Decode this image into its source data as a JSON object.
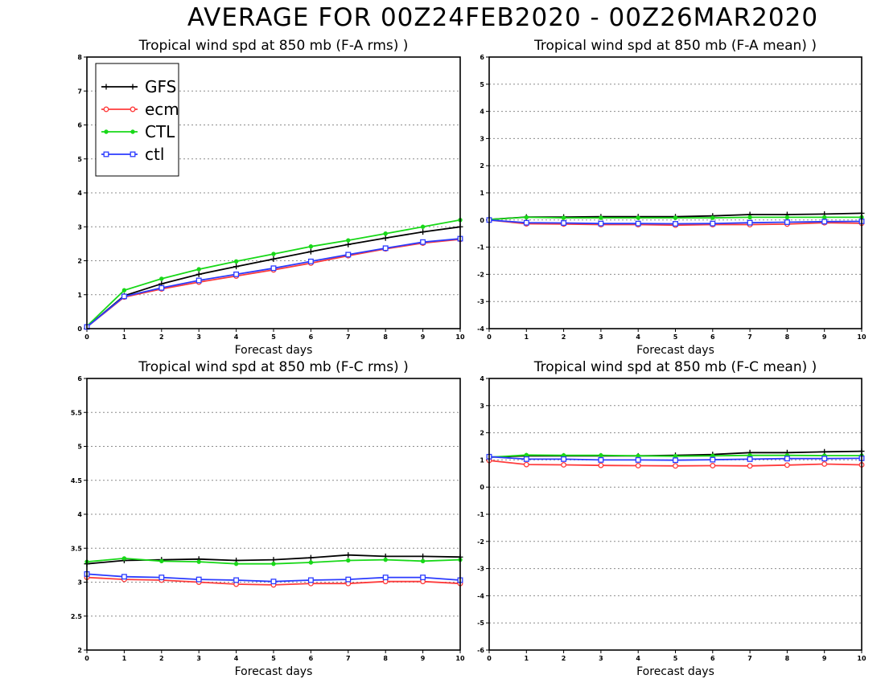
{
  "page_title": "AVERAGE FOR 00Z24FEB2020 - 00Z26MAR2020",
  "legend": [
    {
      "name": "GFS",
      "color": "#000000",
      "marker": "plus"
    },
    {
      "name": "ecm",
      "color": "#ff3b3b",
      "marker": "circle"
    },
    {
      "name": "CTL",
      "color": "#18d818",
      "marker": "dot"
    },
    {
      "name": "ctl",
      "color": "#2b3bff",
      "marker": "square"
    }
  ],
  "chart_data": [
    {
      "type": "line",
      "title": "Tropical wind spd at 850 mb (F-A rms) )",
      "xlabel": "Forecast days",
      "ylabel": "",
      "x": [
        0,
        1,
        2,
        3,
        4,
        5,
        6,
        7,
        8,
        9,
        10
      ],
      "xlim": [
        0,
        10
      ],
      "ylim": [
        0,
        8
      ],
      "yticks": [
        0,
        1,
        2,
        3,
        4,
        5,
        6,
        7,
        8
      ],
      "ytick_labels": [
        "0",
        "1",
        "2",
        "3",
        "4",
        "5",
        "6",
        "7",
        "8"
      ],
      "grid": "horizontal dotted",
      "legend_position": "top-left",
      "series": [
        {
          "name": "GFS",
          "values": [
            0.05,
            0.97,
            1.32,
            1.6,
            1.83,
            2.05,
            2.27,
            2.48,
            2.67,
            2.85,
            3.0
          ]
        },
        {
          "name": "ecm",
          "values": [
            0.05,
            0.93,
            1.17,
            1.37,
            1.55,
            1.73,
            1.93,
            2.15,
            2.35,
            2.52,
            2.63
          ]
        },
        {
          "name": "CTL",
          "values": [
            0.07,
            1.13,
            1.47,
            1.75,
            1.98,
            2.2,
            2.42,
            2.6,
            2.8,
            3.0,
            3.2
          ]
        },
        {
          "name": "ctl",
          "values": [
            0.05,
            0.95,
            1.2,
            1.42,
            1.6,
            1.78,
            1.98,
            2.18,
            2.37,
            2.55,
            2.65
          ]
        }
      ]
    },
    {
      "type": "line",
      "title": "Tropical wind spd at 850 mb (F-A mean) )",
      "xlabel": "Forecast days",
      "ylabel": "",
      "x": [
        0,
        1,
        2,
        3,
        4,
        5,
        6,
        7,
        8,
        9,
        10
      ],
      "xlim": [
        0,
        10
      ],
      "ylim": [
        -4,
        6
      ],
      "yticks": [
        -4,
        -3,
        -2,
        -1,
        0,
        1,
        2,
        3,
        4,
        5,
        6
      ],
      "ytick_labels": [
        "-4",
        "-3",
        "-2",
        "-1",
        "0",
        "1",
        "2",
        "3",
        "4",
        "5",
        "6"
      ],
      "grid": "horizontal dotted",
      "series": [
        {
          "name": "GFS",
          "values": [
            0.02,
            0.11,
            0.11,
            0.12,
            0.12,
            0.12,
            0.15,
            0.2,
            0.2,
            0.22,
            0.25
          ]
        },
        {
          "name": "ecm",
          "values": [
            0.0,
            -0.14,
            -0.15,
            -0.17,
            -0.17,
            -0.19,
            -0.17,
            -0.17,
            -0.15,
            -0.1,
            -0.12
          ]
        },
        {
          "name": "CTL",
          "values": [
            0.02,
            0.1,
            0.08,
            0.08,
            0.08,
            0.08,
            0.08,
            0.1,
            0.1,
            0.1,
            0.1
          ]
        },
        {
          "name": "ctl",
          "values": [
            0.0,
            -0.1,
            -0.11,
            -0.13,
            -0.13,
            -0.14,
            -0.13,
            -0.1,
            -0.08,
            -0.06,
            -0.05
          ]
        }
      ]
    },
    {
      "type": "line",
      "title": "Tropical wind spd at 850 mb (F-C rms) )",
      "xlabel": "Forecast days",
      "ylabel": "",
      "x": [
        0,
        1,
        2,
        3,
        4,
        5,
        6,
        7,
        8,
        9,
        10
      ],
      "xlim": [
        0,
        10
      ],
      "ylim": [
        2,
        6
      ],
      "yticks": [
        2,
        2.5,
        3,
        3.5,
        4,
        4.5,
        5,
        5.5,
        6
      ],
      "ytick_labels": [
        "2",
        "2.5",
        "3",
        "3.5",
        "4",
        "4.5",
        "5",
        "5.5",
        "6"
      ],
      "grid": "horizontal dotted",
      "series": [
        {
          "name": "GFS",
          "values": [
            3.27,
            3.32,
            3.33,
            3.34,
            3.32,
            3.33,
            3.36,
            3.4,
            3.38,
            3.38,
            3.37
          ]
        },
        {
          "name": "ecm",
          "values": [
            3.07,
            3.04,
            3.03,
            3.0,
            2.97,
            2.96,
            2.98,
            2.98,
            3.01,
            3.01,
            2.98
          ]
        },
        {
          "name": "CTL",
          "values": [
            3.3,
            3.35,
            3.31,
            3.3,
            3.27,
            3.27,
            3.29,
            3.32,
            3.33,
            3.31,
            3.33
          ]
        },
        {
          "name": "ctl",
          "values": [
            3.12,
            3.08,
            3.07,
            3.04,
            3.03,
            3.01,
            3.03,
            3.04,
            3.07,
            3.07,
            3.03
          ]
        }
      ]
    },
    {
      "type": "line",
      "title": "Tropical wind spd at 850 mb (F-C mean) )",
      "xlabel": "Forecast days",
      "ylabel": "",
      "x": [
        0,
        1,
        2,
        3,
        4,
        5,
        6,
        7,
        8,
        9,
        10
      ],
      "xlim": [
        0,
        10
      ],
      "ylim": [
        -6,
        4
      ],
      "yticks": [
        -6,
        -5,
        -4,
        -3,
        -2,
        -1,
        0,
        1,
        2,
        3,
        4
      ],
      "ytick_labels": [
        "-6",
        "-5",
        "-4",
        "-3",
        "-2",
        "-1",
        "0",
        "1",
        "2",
        "3",
        "4"
      ],
      "grid": "horizontal dotted",
      "series": [
        {
          "name": "GFS",
          "values": [
            1.1,
            1.15,
            1.15,
            1.15,
            1.15,
            1.17,
            1.2,
            1.27,
            1.27,
            1.3,
            1.32
          ]
        },
        {
          "name": "ecm",
          "values": [
            0.98,
            0.83,
            0.82,
            0.8,
            0.79,
            0.78,
            0.79,
            0.78,
            0.81,
            0.85,
            0.82
          ]
        },
        {
          "name": "CTL",
          "values": [
            1.1,
            1.18,
            1.17,
            1.17,
            1.15,
            1.14,
            1.15,
            1.17,
            1.17,
            1.16,
            1.16
          ]
        },
        {
          "name": "ctl",
          "values": [
            1.12,
            1.03,
            1.03,
            1.0,
            1.0,
            0.99,
            1.01,
            1.03,
            1.05,
            1.05,
            1.06
          ]
        }
      ]
    }
  ]
}
